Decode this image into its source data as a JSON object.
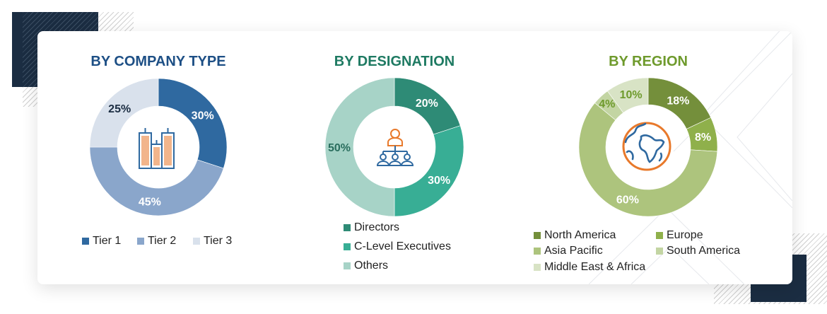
{
  "chart_data": [
    {
      "type": "pie",
      "title": "BY COMPANY TYPE",
      "title_color": "#1d4f85",
      "categories": [
        "Tier 1",
        "Tier 2",
        "Tier 3"
      ],
      "values": [
        30,
        45,
        25
      ],
      "labels": [
        "30%",
        "45%",
        "25%"
      ],
      "colors": [
        "#2f69a0",
        "#8aa6cb",
        "#d9e1ec"
      ],
      "label_colors": [
        "#ffffff",
        "#ffffff",
        "#1b2d42"
      ],
      "legend_position": "bottom",
      "center_icon": "buildings-icon"
    },
    {
      "type": "pie",
      "title": "BY DESIGNATION",
      "title_color": "#1e7a62",
      "categories": [
        "Directors",
        "C-Level Executives",
        "Others"
      ],
      "values": [
        20,
        30,
        50
      ],
      "labels": [
        "20%",
        "30%",
        "50%"
      ],
      "colors": [
        "#2e8b76",
        "#38ae95",
        "#a7d3c7"
      ],
      "label_colors": [
        "#ffffff",
        "#ffffff",
        "#2a6e5e"
      ],
      "legend_position": "bottom",
      "center_icon": "org-hierarchy-icon"
    },
    {
      "type": "pie",
      "title": "BY REGION",
      "title_color": "#6e9a2c",
      "categories": [
        "North America",
        "Europe",
        "Asia Pacific",
        "South America",
        "Middle East & Africa"
      ],
      "values": [
        18,
        8,
        60,
        4,
        10
      ],
      "labels": [
        "18%",
        "8%",
        "60%",
        "4%",
        "10%"
      ],
      "colors": [
        "#748f3b",
        "#8fb04b",
        "#adc47d",
        "#c3d5a3",
        "#d8e3c5"
      ],
      "label_colors": [
        "#ffffff",
        "#ffffff",
        "#ffffff",
        "#6e9a2c",
        "#6e9a2c"
      ],
      "legend_position": "bottom",
      "center_icon": "globe-icon"
    }
  ]
}
